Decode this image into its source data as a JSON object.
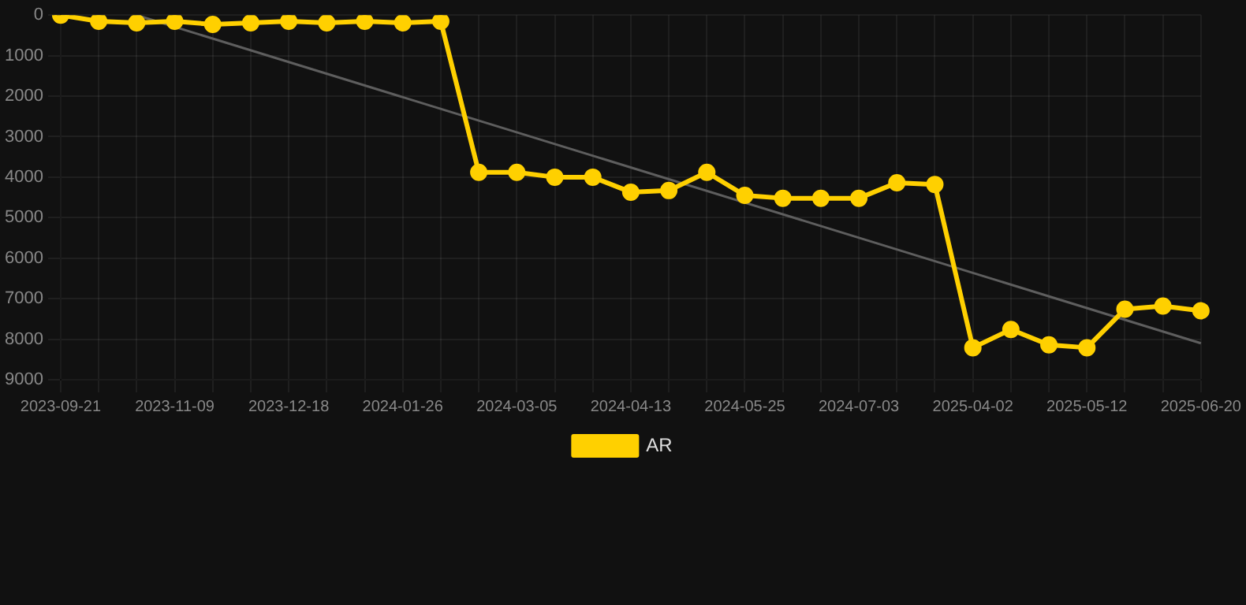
{
  "chart_data": {
    "type": "line",
    "categories": [
      "2023-09-21",
      null,
      null,
      "2023-11-09",
      null,
      null,
      "2023-12-18",
      null,
      null,
      "2024-01-26",
      null,
      null,
      "2024-03-05",
      null,
      null,
      "2024-04-13",
      null,
      null,
      "2024-05-25",
      null,
      null,
      "2024-07-03",
      null,
      null,
      "2025-04-02",
      null,
      null,
      "2025-05-12",
      null,
      null,
      "2025-06-20"
    ],
    "series": [
      {
        "name": "AR",
        "color": "#ffd000",
        "marker": "circle",
        "values": [
          0,
          150,
          190,
          150,
          230,
          190,
          150,
          190,
          150,
          190,
          150,
          3880,
          3880,
          4000,
          4000,
          4370,
          4330,
          3880,
          4450,
          4520,
          4520,
          4520,
          4140,
          4180,
          8210,
          7760,
          8140,
          8210,
          7260,
          7180,
          7300
        ]
      },
      {
        "color": "#5e5e5e",
        "marker": "none",
        "values": [
          null,
          null,
          0,
          null,
          null,
          null,
          null,
          null,
          null,
          null,
          null,
          null,
          null,
          null,
          null,
          null,
          null,
          null,
          null,
          null,
          null,
          null,
          null,
          null,
          null,
          null,
          null,
          null,
          null,
          null,
          8100
        ]
      }
    ],
    "ylim": [
      9000,
      0
    ],
    "yticks": [
      0,
      1000,
      2000,
      3000,
      4000,
      5000,
      6000,
      7000,
      8000,
      9000
    ],
    "grid": true,
    "legend": "bottom"
  }
}
